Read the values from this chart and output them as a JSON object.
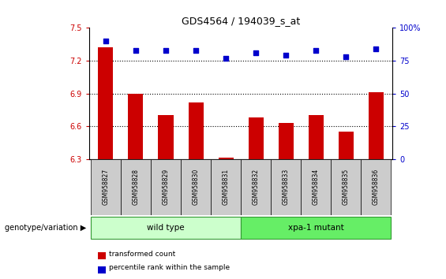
{
  "title": "GDS4564 / 194039_s_at",
  "samples": [
    "GSM958827",
    "GSM958828",
    "GSM958829",
    "GSM958830",
    "GSM958831",
    "GSM958832",
    "GSM958833",
    "GSM958834",
    "GSM958835",
    "GSM958836"
  ],
  "transformed_count": [
    7.32,
    6.9,
    6.7,
    6.82,
    6.31,
    6.68,
    6.63,
    6.7,
    6.55,
    6.91
  ],
  "percentile_rank": [
    90,
    83,
    83,
    83,
    77,
    81,
    79,
    83,
    78,
    84
  ],
  "ylim_left": [
    6.3,
    7.5
  ],
  "ylim_right": [
    0,
    100
  ],
  "yticks_left": [
    6.3,
    6.6,
    6.9,
    7.2,
    7.5
  ],
  "yticks_right": [
    0,
    25,
    50,
    75,
    100
  ],
  "bar_color": "#cc0000",
  "dot_color": "#0000cc",
  "group1_label": "wild type",
  "group2_label": "xpa-1 mutant",
  "group1_indices": [
    0,
    1,
    2,
    3,
    4
  ],
  "group2_indices": [
    5,
    6,
    7,
    8,
    9
  ],
  "group1_color": "#ccffcc",
  "group2_color": "#66ee66",
  "legend_bar_label": "transformed count",
  "legend_dot_label": "percentile rank within the sample",
  "genotype_label": "genotype/variation",
  "bg_color": "#ffffff",
  "tick_label_color_left": "#cc0000",
  "tick_label_color_right": "#0000cc",
  "sample_bg_color": "#cccccc",
  "group_border_color": "#339933"
}
